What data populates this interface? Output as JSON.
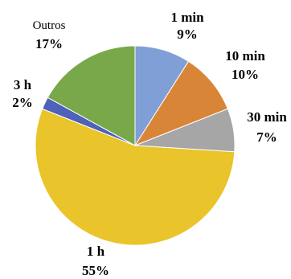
{
  "chart_data": {
    "type": "pie",
    "title": "",
    "start_angle_deg": 0,
    "direction": "clockwise",
    "slices": [
      {
        "label": "1 min",
        "percent_label": "9%",
        "value": 9,
        "color": "#7f9fd6"
      },
      {
        "label": "10 min",
        "percent_label": "10%",
        "value": 10,
        "color": "#d98538"
      },
      {
        "label": "30 min",
        "percent_label": "7%",
        "value": 7,
        "color": "#a6a6a6"
      },
      {
        "label": "1 h",
        "percent_label": "55%",
        "value": 55,
        "color": "#e9c42a"
      },
      {
        "label": "3 h",
        "percent_label": "2%",
        "value": 2,
        "color": "#4d62b8"
      },
      {
        "label": "Outros",
        "percent_label": "17%",
        "value": 17,
        "color": "#79a84b"
      }
    ]
  }
}
